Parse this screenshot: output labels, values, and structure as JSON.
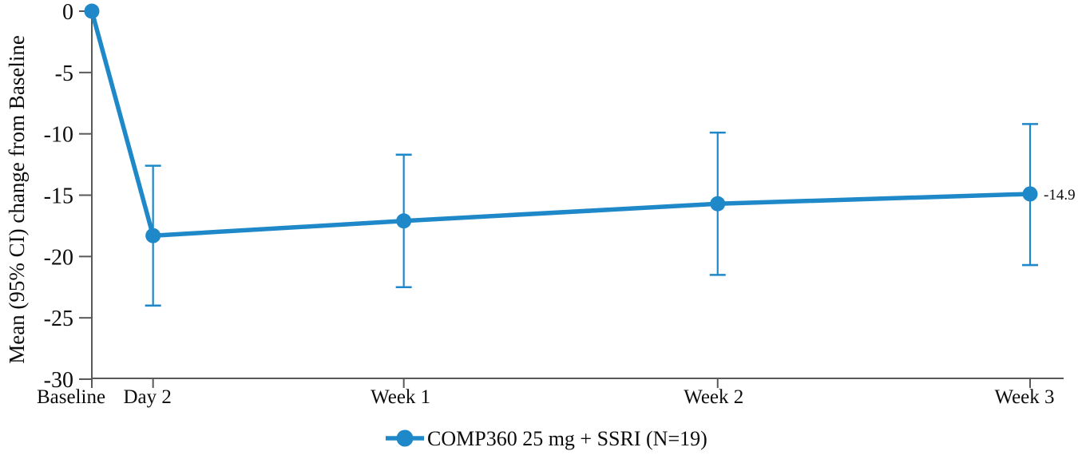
{
  "chart_data": {
    "type": "line",
    "title": "",
    "xlabel": "",
    "ylabel": "Mean (95% CI) change from Baseline",
    "ylim": [
      -30,
      0
    ],
    "yticks": [
      0,
      -5,
      -10,
      -15,
      -20,
      -25,
      -30
    ],
    "ytick_labels": [
      "0",
      "-5",
      "-10",
      "-15",
      "-20",
      "-25",
      "-30"
    ],
    "categories": [
      "Baseline",
      "Day 2",
      "Week 1",
      "Week 2",
      "Week 3"
    ],
    "grid": false,
    "legend_position": "bottom",
    "series": [
      {
        "name": "COMP360 25 mg + SSRI (N=19)",
        "color": "#1f88c9",
        "means": [
          0,
          -18.3,
          -17.1,
          -15.7,
          -14.9
        ],
        "ci_low": [
          null,
          -24.0,
          -22.5,
          -21.5,
          -20.7
        ],
        "ci_high": [
          null,
          -12.6,
          -11.7,
          -9.9,
          -9.2
        ],
        "point_labels": [
          "",
          "",
          "",
          "",
          "-14.9"
        ]
      }
    ],
    "colors": {
      "series": "#1f88c9",
      "axis": "#595959",
      "text": "#0c0c0c"
    }
  }
}
